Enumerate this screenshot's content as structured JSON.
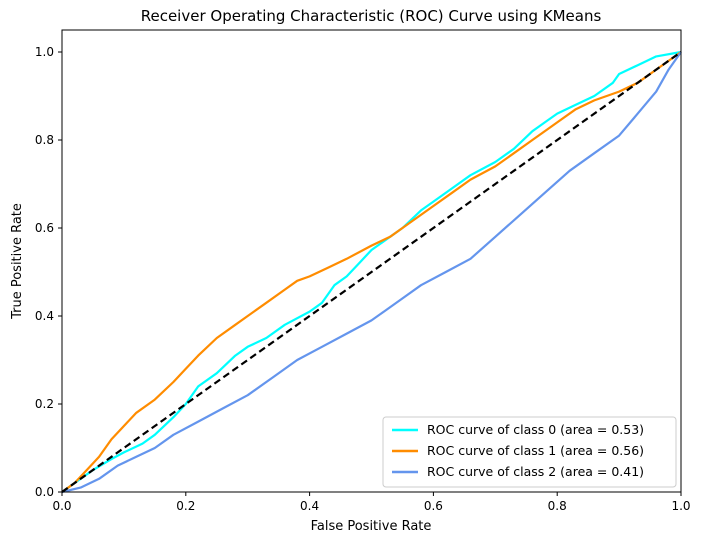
{
  "chart_data": {
    "type": "line",
    "title": "Receiver Operating Characteristic (ROC) Curve using KMeans",
    "xlabel": "False Positive Rate",
    "ylabel": "True Positive Rate",
    "xlim": [
      0.0,
      1.0
    ],
    "ylim": [
      0.0,
      1.05
    ],
    "x_ticks": [
      "0.0",
      "0.2",
      "0.4",
      "0.6",
      "0.8",
      "1.0"
    ],
    "y_ticks": [
      "0.0",
      "0.2",
      "0.4",
      "0.6",
      "0.8",
      "1.0"
    ],
    "grid": false,
    "legend_position": "lower-right",
    "series": [
      {
        "name": "ROC curve of class 0 (area = 0.53)",
        "color": "#00ffff",
        "points": [
          [
            0.0,
            0.0
          ],
          [
            0.02,
            0.02
          ],
          [
            0.05,
            0.05
          ],
          [
            0.08,
            0.075
          ],
          [
            0.1,
            0.09
          ],
          [
            0.13,
            0.11
          ],
          [
            0.15,
            0.13
          ],
          [
            0.18,
            0.17
          ],
          [
            0.2,
            0.2
          ],
          [
            0.22,
            0.24
          ],
          [
            0.25,
            0.27
          ],
          [
            0.28,
            0.31
          ],
          [
            0.3,
            0.33
          ],
          [
            0.33,
            0.35
          ],
          [
            0.36,
            0.38
          ],
          [
            0.4,
            0.41
          ],
          [
            0.42,
            0.43
          ],
          [
            0.44,
            0.47
          ],
          [
            0.46,
            0.49
          ],
          [
            0.48,
            0.52
          ],
          [
            0.5,
            0.55
          ],
          [
            0.52,
            0.57
          ],
          [
            0.55,
            0.6
          ],
          [
            0.58,
            0.64
          ],
          [
            0.6,
            0.66
          ],
          [
            0.63,
            0.69
          ],
          [
            0.66,
            0.72
          ],
          [
            0.7,
            0.75
          ],
          [
            0.73,
            0.78
          ],
          [
            0.76,
            0.82
          ],
          [
            0.78,
            0.84
          ],
          [
            0.8,
            0.86
          ],
          [
            0.83,
            0.88
          ],
          [
            0.86,
            0.9
          ],
          [
            0.89,
            0.93
          ],
          [
            0.9,
            0.95
          ],
          [
            0.93,
            0.97
          ],
          [
            0.96,
            0.99
          ],
          [
            1.0,
            1.0
          ]
        ]
      },
      {
        "name": "ROC curve of class 1 (area = 0.56)",
        "color": "#ff8c00",
        "points": [
          [
            0.0,
            0.0
          ],
          [
            0.02,
            0.02
          ],
          [
            0.04,
            0.05
          ],
          [
            0.06,
            0.08
          ],
          [
            0.08,
            0.12
          ],
          [
            0.1,
            0.15
          ],
          [
            0.12,
            0.18
          ],
          [
            0.15,
            0.21
          ],
          [
            0.18,
            0.25
          ],
          [
            0.2,
            0.28
          ],
          [
            0.22,
            0.31
          ],
          [
            0.25,
            0.35
          ],
          [
            0.28,
            0.38
          ],
          [
            0.3,
            0.4
          ],
          [
            0.33,
            0.43
          ],
          [
            0.36,
            0.46
          ],
          [
            0.38,
            0.48
          ],
          [
            0.4,
            0.49
          ],
          [
            0.43,
            0.51
          ],
          [
            0.46,
            0.53
          ],
          [
            0.5,
            0.56
          ],
          [
            0.53,
            0.58
          ],
          [
            0.56,
            0.61
          ],
          [
            0.6,
            0.65
          ],
          [
            0.63,
            0.68
          ],
          [
            0.66,
            0.71
          ],
          [
            0.7,
            0.74
          ],
          [
            0.73,
            0.77
          ],
          [
            0.76,
            0.8
          ],
          [
            0.8,
            0.84
          ],
          [
            0.83,
            0.87
          ],
          [
            0.86,
            0.89
          ],
          [
            0.9,
            0.91
          ],
          [
            0.93,
            0.93
          ],
          [
            0.96,
            0.96
          ],
          [
            1.0,
            1.0
          ]
        ]
      },
      {
        "name": "ROC curve of class 2 (area = 0.41)",
        "color": "#6495ed",
        "points": [
          [
            0.0,
            0.0
          ],
          [
            0.03,
            0.01
          ],
          [
            0.06,
            0.03
          ],
          [
            0.09,
            0.06
          ],
          [
            0.12,
            0.08
          ],
          [
            0.15,
            0.1
          ],
          [
            0.18,
            0.13
          ],
          [
            0.22,
            0.16
          ],
          [
            0.26,
            0.19
          ],
          [
            0.3,
            0.22
          ],
          [
            0.34,
            0.26
          ],
          [
            0.38,
            0.3
          ],
          [
            0.42,
            0.33
          ],
          [
            0.46,
            0.36
          ],
          [
            0.5,
            0.39
          ],
          [
            0.52,
            0.41
          ],
          [
            0.55,
            0.44
          ],
          [
            0.58,
            0.47
          ],
          [
            0.62,
            0.5
          ],
          [
            0.66,
            0.53
          ],
          [
            0.7,
            0.58
          ],
          [
            0.74,
            0.63
          ],
          [
            0.78,
            0.68
          ],
          [
            0.82,
            0.73
          ],
          [
            0.86,
            0.77
          ],
          [
            0.9,
            0.81
          ],
          [
            0.93,
            0.86
          ],
          [
            0.96,
            0.91
          ],
          [
            0.98,
            0.96
          ],
          [
            1.0,
            1.0
          ]
        ]
      },
      {
        "name": "",
        "color": "#000000",
        "dashed": true,
        "points": [
          [
            0.0,
            0.0
          ],
          [
            1.0,
            1.0
          ]
        ]
      }
    ]
  }
}
